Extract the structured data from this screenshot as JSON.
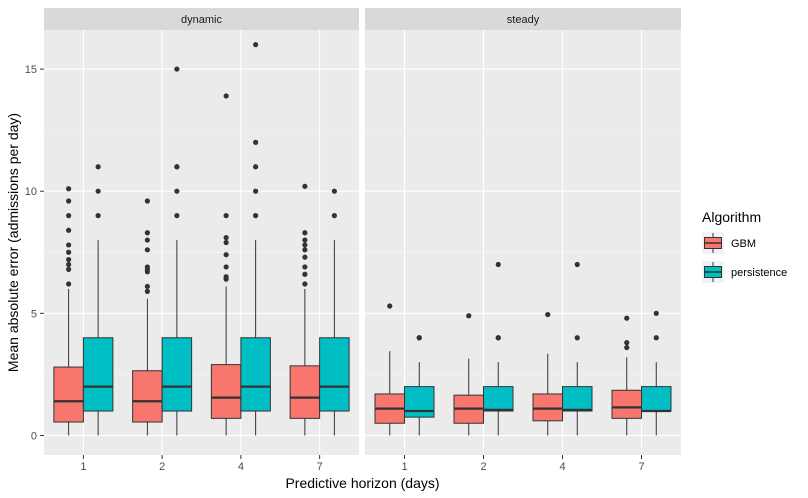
{
  "chart_data": {
    "type": "boxplot",
    "title": "",
    "xlabel": "Predictive horizon (days)",
    "ylabel": "Mean absolute error (admissions per day)",
    "ylim": [
      -0.8,
      16.6
    ],
    "yticks": [
      0,
      5,
      10,
      15
    ],
    "categories": [
      "1",
      "2",
      "4",
      "7"
    ],
    "legend": {
      "title": "Algorithm",
      "position": "right",
      "items": [
        {
          "name": "GBM",
          "color": "#F8766D"
        },
        {
          "name": "persistence",
          "color": "#00BFC4"
        }
      ]
    },
    "panels": [
      {
        "label": "dynamic",
        "groups": [
          {
            "category": "1",
            "series": "GBM",
            "q1": 0.55,
            "median": 1.4,
            "q3": 2.8,
            "lower": 0,
            "upper": 6.0,
            "outliers": [
              6.2,
              6.8,
              7.0,
              7.2,
              7.5,
              7.8,
              8.4,
              9.0,
              9.6,
              10.1
            ]
          },
          {
            "category": "1",
            "series": "persistence",
            "q1": 1,
            "median": 2,
            "q3": 4,
            "lower": 0,
            "upper": 8,
            "outliers": [
              9,
              10,
              11
            ]
          },
          {
            "category": "2",
            "series": "GBM",
            "q1": 0.55,
            "median": 1.4,
            "q3": 2.65,
            "lower": 0,
            "upper": 5.6,
            "outliers": [
              5.9,
              6.1,
              6.7,
              6.8,
              6.9,
              7.6,
              8.0,
              8.3,
              9.6
            ]
          },
          {
            "category": "2",
            "series": "persistence",
            "q1": 1,
            "median": 2,
            "q3": 4,
            "lower": 0,
            "upper": 8,
            "outliers": [
              9,
              10,
              11,
              11,
              15
            ]
          },
          {
            "category": "4",
            "series": "GBM",
            "q1": 0.7,
            "median": 1.55,
            "q3": 2.9,
            "lower": 0,
            "upper": 6.1,
            "outliers": [
              6.4,
              6.5,
              6.9,
              7.4,
              7.9,
              8.1,
              9.0,
              13.9
            ]
          },
          {
            "category": "4",
            "series": "persistence",
            "q1": 1,
            "median": 2,
            "q3": 4,
            "lower": 0,
            "upper": 8,
            "outliers": [
              9,
              10,
              11,
              12,
              16
            ]
          },
          {
            "category": "7",
            "series": "GBM",
            "q1": 0.7,
            "median": 1.55,
            "q3": 2.85,
            "lower": 0,
            "upper": 6.0,
            "outliers": [
              6.2,
              6.6,
              6.9,
              7.3,
              7.6,
              7.8,
              8.0,
              8.3,
              10.2
            ]
          },
          {
            "category": "7",
            "series": "persistence",
            "q1": 1,
            "median": 2,
            "q3": 4,
            "lower": 0,
            "upper": 8,
            "outliers": [
              9,
              10
            ]
          }
        ]
      },
      {
        "label": "steady",
        "groups": [
          {
            "category": "1",
            "series": "GBM",
            "q1": 0.5,
            "median": 1.1,
            "q3": 1.7,
            "lower": 0,
            "upper": 3.45,
            "outliers": [
              5.3
            ]
          },
          {
            "category": "1",
            "series": "persistence",
            "q1": 0.75,
            "median": 1.0,
            "q3": 2.0,
            "lower": 0,
            "upper": 3.0,
            "outliers": [
              4,
              4
            ]
          },
          {
            "category": "2",
            "series": "GBM",
            "q1": 0.5,
            "median": 1.1,
            "q3": 1.65,
            "lower": 0,
            "upper": 3.15,
            "outliers": [
              4.9
            ]
          },
          {
            "category": "2",
            "series": "persistence",
            "q1": 1.0,
            "median": 1.05,
            "q3": 2.0,
            "lower": 0,
            "upper": 3.0,
            "outliers": [
              4,
              4,
              7
            ]
          },
          {
            "category": "4",
            "series": "GBM",
            "q1": 0.6,
            "median": 1.1,
            "q3": 1.7,
            "lower": 0,
            "upper": 3.35,
            "outliers": [
              4.95
            ]
          },
          {
            "category": "4",
            "series": "persistence",
            "q1": 1.0,
            "median": 1.05,
            "q3": 2.0,
            "lower": 0,
            "upper": 3.0,
            "outliers": [
              4,
              7
            ]
          },
          {
            "category": "7",
            "series": "GBM",
            "q1": 0.7,
            "median": 1.15,
            "q3": 1.85,
            "lower": 0,
            "upper": 3.2,
            "outliers": [
              3.6,
              3.8,
              4.8
            ]
          },
          {
            "category": "7",
            "series": "persistence",
            "q1": 1.0,
            "median": 1.0,
            "q3": 2.0,
            "lower": 0,
            "upper": 3.0,
            "outliers": [
              4,
              5
            ]
          }
        ]
      }
    ]
  }
}
